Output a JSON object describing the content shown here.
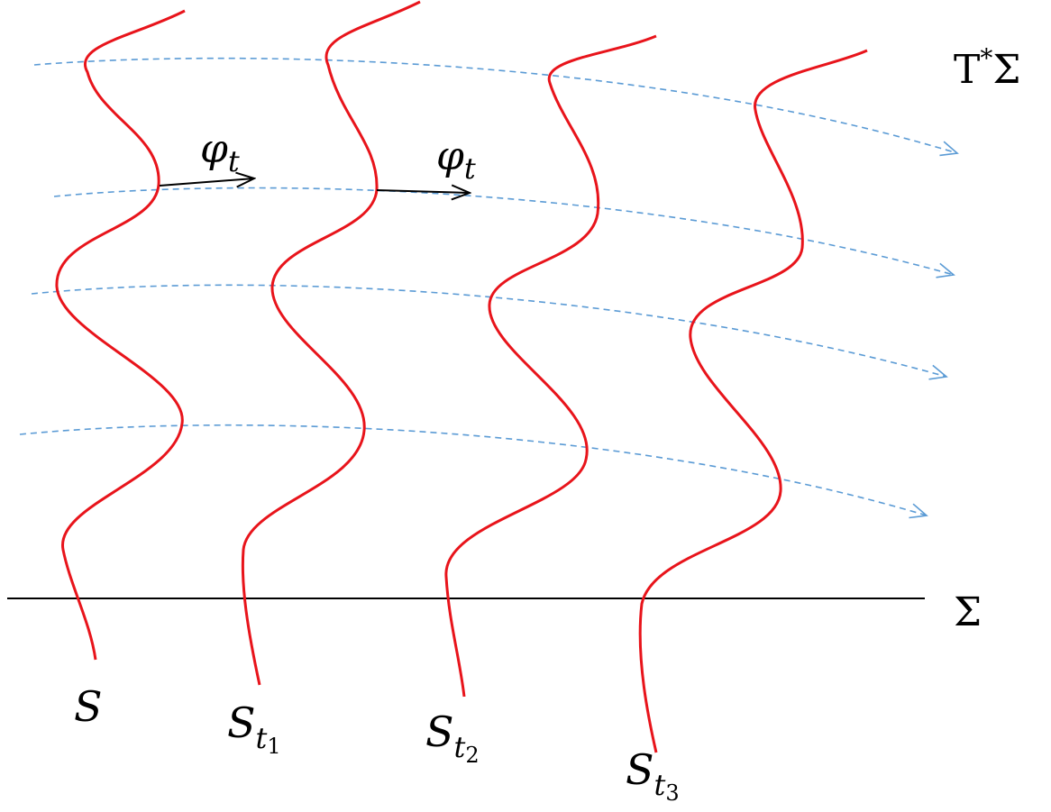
{
  "diagram": {
    "labels": {
      "space": {
        "base": "T",
        "sup": "*",
        "rest": "Σ"
      },
      "sigma": "Σ",
      "flow": [
        {
          "base": "φ",
          "sub": "t"
        },
        {
          "base": "φ",
          "sub": "t"
        }
      ],
      "surfaces": [
        {
          "base": "S",
          "sub": ""
        },
        {
          "base": "S",
          "sub": "t",
          "subsub": "1"
        },
        {
          "base": "S",
          "sub": "t",
          "subsub": "2"
        },
        {
          "base": "S",
          "sub": "t",
          "subsub": "3"
        }
      ]
    },
    "colors": {
      "surface": "#e8141b",
      "flow_line": "#5b9bd5",
      "axis": "#000000",
      "arrow": "#000000"
    }
  }
}
